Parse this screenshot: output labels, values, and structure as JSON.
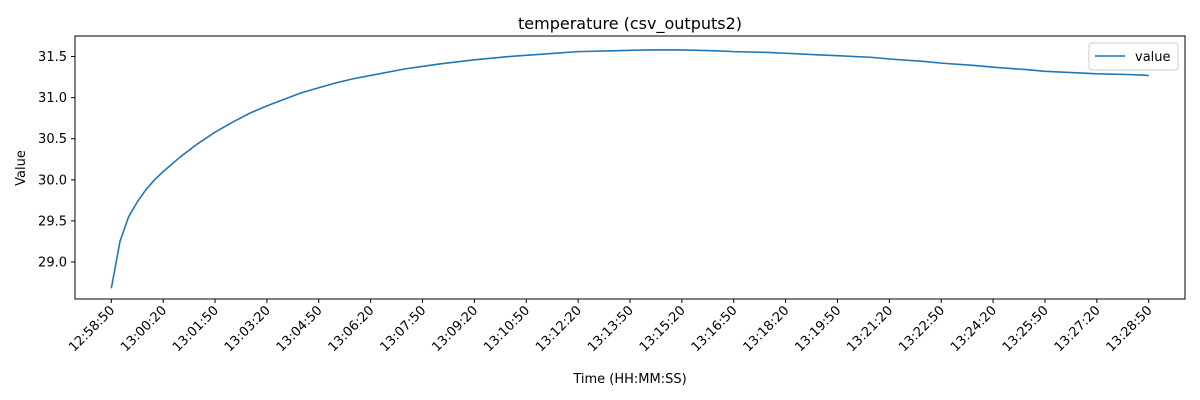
{
  "chart_data": {
    "type": "line",
    "title": "temperature (csv_outputs2)",
    "xlabel": "Time (HH:MM:SS)",
    "ylabel": "Value",
    "x_ticks": [
      "12:58:50",
      "13:00:20",
      "13:01:50",
      "13:03:20",
      "13:04:50",
      "13:06:20",
      "13:07:50",
      "13:09:20",
      "13:10:50",
      "13:12:20",
      "13:13:50",
      "13:15:20",
      "13:16:50",
      "13:18:20",
      "13:19:50",
      "13:21:20",
      "13:22:50",
      "13:24:20",
      "13:25:50",
      "13:27:20",
      "13:28:50"
    ],
    "y_ticks": [
      "29.0",
      "29.5",
      "30.0",
      "30.5",
      "31.0",
      "31.5"
    ],
    "ylim": [
      28.55,
      31.75
    ],
    "xlim": [
      "12:57:47",
      "13:29:53"
    ],
    "legend": {
      "position": "top-right",
      "entries": [
        "value"
      ]
    },
    "grid": false,
    "series": [
      {
        "name": "value",
        "color": "#1f77b4",
        "x": [
          "12:58:50",
          "12:59:05",
          "12:59:20",
          "12:59:35",
          "12:59:50",
          "13:00:05",
          "13:00:20",
          "13:00:50",
          "13:01:20",
          "13:01:50",
          "13:02:20",
          "13:02:50",
          "13:03:20",
          "13:03:50",
          "13:04:20",
          "13:04:50",
          "13:05:20",
          "13:05:50",
          "13:06:20",
          "13:07:20",
          "13:08:20",
          "13:09:20",
          "13:10:20",
          "13:11:20",
          "13:12:20",
          "13:13:20",
          "13:14:20",
          "13:14:50",
          "13:15:20",
          "13:16:20",
          "13:16:50",
          "13:17:50",
          "13:18:20",
          "13:19:20",
          "13:19:50",
          "13:20:50",
          "13:21:20",
          "13:22:20",
          "13:22:50",
          "13:23:50",
          "13:24:20",
          "13:25:20",
          "13:25:50",
          "13:26:50",
          "13:27:20",
          "13:28:20",
          "13:28:50"
        ],
        "y": [
          28.68,
          29.25,
          29.55,
          29.73,
          29.88,
          30.0,
          30.1,
          30.28,
          30.44,
          30.58,
          30.7,
          30.81,
          30.9,
          30.98,
          31.06,
          31.12,
          31.18,
          31.23,
          31.27,
          31.35,
          31.41,
          31.46,
          31.5,
          31.53,
          31.56,
          31.57,
          31.58,
          31.58,
          31.58,
          31.57,
          31.56,
          31.55,
          31.54,
          31.52,
          31.51,
          31.49,
          31.47,
          31.44,
          31.42,
          31.39,
          31.37,
          31.34,
          31.32,
          31.3,
          31.29,
          31.28,
          31.27
        ]
      }
    ]
  }
}
